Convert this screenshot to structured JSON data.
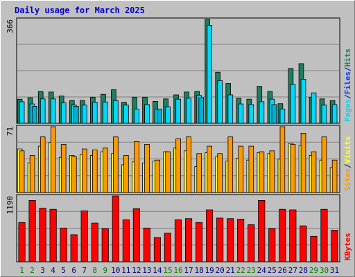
{
  "chart_data": {
    "type": "bar",
    "title": "Daily usage for March 2025",
    "categories": [
      "1",
      "2",
      "3",
      "4",
      "5",
      "6",
      "7",
      "8",
      "9",
      "10",
      "11",
      "12",
      "13",
      "14",
      "15",
      "16",
      "17",
      "18",
      "19",
      "20",
      "21",
      "22",
      "23",
      "24",
      "25",
      "26",
      "27",
      "28",
      "29",
      "30",
      "31"
    ],
    "weekend_days": [
      "1",
      "2",
      "8",
      "9",
      "15",
      "16",
      "22",
      "23",
      "29",
      "30"
    ],
    "colors": {
      "pages": "#1a8060",
      "files": "#00d8ff",
      "hits": "#1a7050",
      "visits": "#ffff33",
      "sites": "#ff9900",
      "kbytes": "#ff0000",
      "weekday_label": "#000080",
      "weekend_label": "#008000",
      "background": "#c0c0c0"
    },
    "panels": [
      {
        "name": "hits-files-pages",
        "ymax": 366,
        "ymax_label": "366",
        "grid": true,
        "legend": [
          {
            "label": "Pages",
            "color": "#00d8ff"
          },
          {
            "label": "/",
            "color": "#000080"
          },
          {
            "label": "Files",
            "color": "#0040ff"
          },
          {
            "label": "/",
            "color": "#000080"
          },
          {
            "label": "Hits",
            "color": "#1a8060"
          }
        ],
        "series": [
          {
            "name": "Hits",
            "color": "#1a8060",
            "values": [
              85,
              90,
              112,
              110,
              96,
              80,
              80,
              92,
              102,
              118,
              74,
              92,
              92,
              77,
              86,
              100,
              110,
              112,
              366,
              180,
              140,
              88,
              85,
              130,
              112,
              69,
              193,
              210,
              92,
              86,
              80
            ]
          },
          {
            "name": "Files",
            "color": "#00d8ff",
            "values": [
              76,
              68,
              86,
              86,
              72,
              64,
              64,
              74,
              75,
              80,
              64,
              50,
              66,
              50,
              58,
              85,
              88,
              98,
              345,
              150,
              100,
              68,
              66,
              76,
              85,
              50,
              137,
              155,
              107,
              64,
              66
            ]
          },
          {
            "name": "Pages",
            "color": "#00b0d0",
            "values": [
              0,
              60,
              0,
              0,
              0,
              60,
              0,
              0,
              0,
              0,
              0,
              0,
              0,
              50,
              0,
              0,
              0,
              90,
              0,
              0,
              0,
              0,
              0,
              0,
              66,
              0,
              0,
              0,
              0,
              0,
              0
            ]
          }
        ]
      },
      {
        "name": "visits-sites",
        "ymax": 71,
        "ymax_label": "71",
        "grid": true,
        "legend": [
          {
            "label": "Sites",
            "color": "#ff9900"
          },
          {
            "label": "/",
            "color": "#000080"
          },
          {
            "label": "Visits",
            "color": "#ffff33"
          }
        ],
        "series": [
          {
            "name": "Visits",
            "color": "#ffff33",
            "values": [
              47,
              32,
              50,
              54,
              38,
              40,
              41,
              40,
              44,
              42,
              30,
              33,
              32,
              34,
              44,
              48,
              45,
              28,
              43,
              39,
              34,
              37,
              35,
              43,
              42,
              36,
              53,
              51,
              40,
              35,
              27
            ]
          },
          {
            "name": "Sites",
            "color": "#ff9900",
            "values": [
              45,
              40,
              60,
              71,
              52,
              39,
              47,
              46,
              48,
              60,
              40,
              55,
              52,
              35,
              44,
              58,
              60,
              42,
              50,
              42,
              60,
              50,
              50,
              44,
              45,
              71,
              52,
              64,
              44,
              60,
              35
            ]
          }
        ]
      },
      {
        "name": "kbytes",
        "ymax": 1190,
        "ymax_label": "1190",
        "grid": true,
        "legend": [
          {
            "label": "KBytes",
            "color": "#ff0000"
          }
        ],
        "series": [
          {
            "name": "KBytes",
            "color": "#ff0000",
            "values": [
              710,
              1110,
              970,
              950,
              610,
              490,
              920,
              700,
              600,
              1190,
              760,
              960,
              610,
              440,
              520,
              760,
              780,
              710,
              940,
              790,
              780,
              770,
              670,
              1110,
              600,
              950,
              940,
              650,
              460,
              950,
              570
            ]
          }
        ]
      }
    ]
  }
}
